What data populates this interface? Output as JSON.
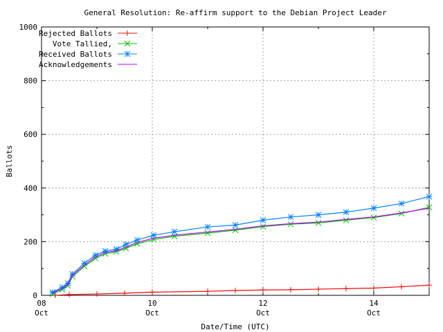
{
  "chart_data": {
    "type": "line",
    "title": "General Resolution: Re-affirm support to the Debian Project Leader",
    "xlabel": "Date/Time (UTC)",
    "ylabel": "Ballots",
    "ylim": [
      0,
      1000
    ],
    "xlim": [
      "Oct 08 00:00",
      "Oct 15 00:00"
    ],
    "yticks": [
      "0",
      "200",
      "400",
      "600",
      "800",
      "1000"
    ],
    "xticks": [
      [
        "08",
        "Oct"
      ],
      [
        "10",
        "Oct"
      ],
      [
        "12",
        "Oct"
      ],
      [
        "14",
        "Oct"
      ]
    ],
    "grid": true,
    "legend_position": "top-left",
    "series": [
      {
        "name": "Rejected Ballots",
        "color": "#ff0000",
        "marker": "plus",
        "points": [
          [
            "Oct 08 06:00",
            0
          ],
          [
            "Oct 08 12:00",
            3
          ],
          [
            "Oct 09 00:00",
            5
          ],
          [
            "Oct 09 12:00",
            8
          ],
          [
            "Oct 10 00:00",
            12
          ],
          [
            "Oct 11 00:00",
            15
          ],
          [
            "Oct 11 12:00",
            18
          ],
          [
            "Oct 12 00:00",
            20
          ],
          [
            "Oct 12 12:00",
            21
          ],
          [
            "Oct 13 00:00",
            23
          ],
          [
            "Oct 13 12:00",
            25
          ],
          [
            "Oct 14 00:00",
            27
          ],
          [
            "Oct 14 12:00",
            32
          ],
          [
            "Oct 15 00:00",
            38
          ]
        ]
      },
      {
        "name": "Vote Tallied,",
        "color": "#00c000",
        "marker": "cross",
        "points": [
          [
            "Oct 08 04:48",
            5
          ],
          [
            "Oct 08 09:00",
            22
          ],
          [
            "Oct 08 11:24",
            36
          ],
          [
            "Oct 08 13:26",
            70
          ],
          [
            "Oct 08 18:36",
            108
          ],
          [
            "Oct 08 23:24",
            138
          ],
          [
            "Oct 09 03:36",
            155
          ],
          [
            "Oct 09 08:24",
            163
          ],
          [
            "Oct 09 12:36",
            175
          ],
          [
            "Oct 09 17:24",
            192
          ],
          [
            "Oct 10 00:36",
            208
          ],
          [
            "Oct 10 09:36",
            220
          ],
          [
            "Oct 11 00:00",
            232
          ],
          [
            "Oct 11 12:00",
            243
          ],
          [
            "Oct 12 00:00",
            256
          ],
          [
            "Oct 12 12:00",
            265
          ],
          [
            "Oct 13 00:00",
            270
          ],
          [
            "Oct 13 12:00",
            280
          ],
          [
            "Oct 14 00:00",
            290
          ],
          [
            "Oct 14 12:00",
            305
          ],
          [
            "Oct 15 00:00",
            328
          ]
        ]
      },
      {
        "name": "Received Ballots",
        "color": "#0080ff",
        "marker": "star",
        "points": [
          [
            "Oct 08 04:48",
            12
          ],
          [
            "Oct 08 09:00",
            30
          ],
          [
            "Oct 08 11:24",
            45
          ],
          [
            "Oct 08 13:26",
            80
          ],
          [
            "Oct 08 18:36",
            120
          ],
          [
            "Oct 08 23:24",
            150
          ],
          [
            "Oct 09 03:36",
            165
          ],
          [
            "Oct 09 08:24",
            172
          ],
          [
            "Oct 09 12:36",
            190
          ],
          [
            "Oct 09 17:24",
            206
          ],
          [
            "Oct 10 00:36",
            224
          ],
          [
            "Oct 10 09:36",
            237
          ],
          [
            "Oct 11 00:00",
            255
          ],
          [
            "Oct 11 12:00",
            262
          ],
          [
            "Oct 12 00:00",
            280
          ],
          [
            "Oct 12 12:00",
            292
          ],
          [
            "Oct 13 00:00",
            300
          ],
          [
            "Oct 13 12:00",
            310
          ],
          [
            "Oct 14 00:00",
            325
          ],
          [
            "Oct 14 12:00",
            342
          ],
          [
            "Oct 15 00:00",
            368
          ]
        ]
      },
      {
        "name": "Acknowledgements",
        "color": "#c000ff",
        "marker": "none",
        "points": [
          [
            "Oct 08 04:48",
            8
          ],
          [
            "Oct 08 09:00",
            26
          ],
          [
            "Oct 08 11:24",
            40
          ],
          [
            "Oct 08 13:26",
            75
          ],
          [
            "Oct 08 18:36",
            113
          ],
          [
            "Oct 08 23:24",
            143
          ],
          [
            "Oct 09 03:36",
            160
          ],
          [
            "Oct 09 08:24",
            166
          ],
          [
            "Oct 09 12:36",
            180
          ],
          [
            "Oct 09 17:24",
            197
          ],
          [
            "Oct 10 00:36",
            213
          ],
          [
            "Oct 10 09:36",
            224
          ],
          [
            "Oct 11 00:00",
            236
          ],
          [
            "Oct 11 12:00",
            246
          ],
          [
            "Oct 12 00:00",
            259
          ],
          [
            "Oct 12 12:00",
            267
          ],
          [
            "Oct 13 00:00",
            273
          ],
          [
            "Oct 13 12:00",
            283
          ],
          [
            "Oct 14 00:00",
            292
          ],
          [
            "Oct 14 12:00",
            307
          ],
          [
            "Oct 15 00:00",
            325
          ]
        ]
      }
    ]
  }
}
